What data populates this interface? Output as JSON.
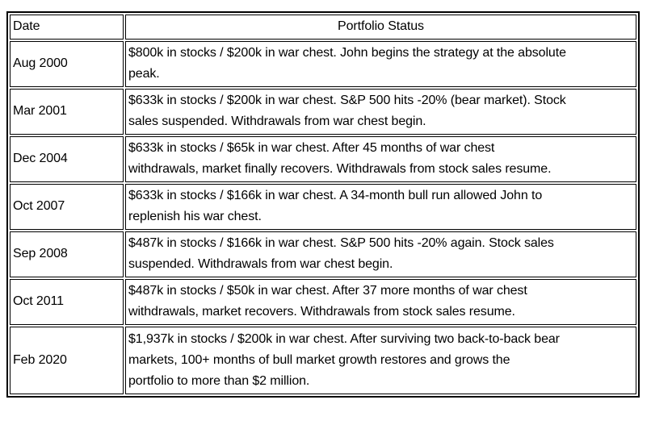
{
  "table": {
    "headers": {
      "date": "Date",
      "status": "Portfolio Status"
    },
    "rows": [
      {
        "date": "Aug 2000",
        "status": "$800k in stocks / $200k in war chest. John begins the strategy at the absolute\npeak."
      },
      {
        "date": "Mar 2001",
        "status": "$633k in stocks / $200k in war chest. S&P 500 hits -20% (bear market). Stock\nsales suspended. Withdrawals from war chest begin."
      },
      {
        "date": "Dec 2004",
        "status": "$633k in stocks / $65k in war chest. After 45 months of war chest\nwithdrawals, market finally recovers. Withdrawals from stock sales resume."
      },
      {
        "date": "Oct 2007",
        "status": "$633k in stocks / $166k in war chest. A 34-month bull run allowed John to\nreplenish his war chest."
      },
      {
        "date": "Sep 2008",
        "status": "$487k in stocks / $166k in war chest. S&P 500 hits -20% again. Stock sales\nsuspended. Withdrawals from war chest begin."
      },
      {
        "date": "Oct 2011",
        "status": "$487k in stocks / $50k in war chest. After 37 more months of war chest\nwithdrawals, market recovers. Withdrawals from stock sales resume."
      },
      {
        "date": "Feb 2020",
        "status": "$1,937k in stocks / $200k in war chest. After surviving two back-to-back bear\nmarkets, 100+ months of bull market growth restores and grows the\nportfolio to more than $2 million."
      }
    ],
    "colors": {
      "border": "#000000",
      "text": "#000000",
      "background": "#ffffff"
    }
  }
}
